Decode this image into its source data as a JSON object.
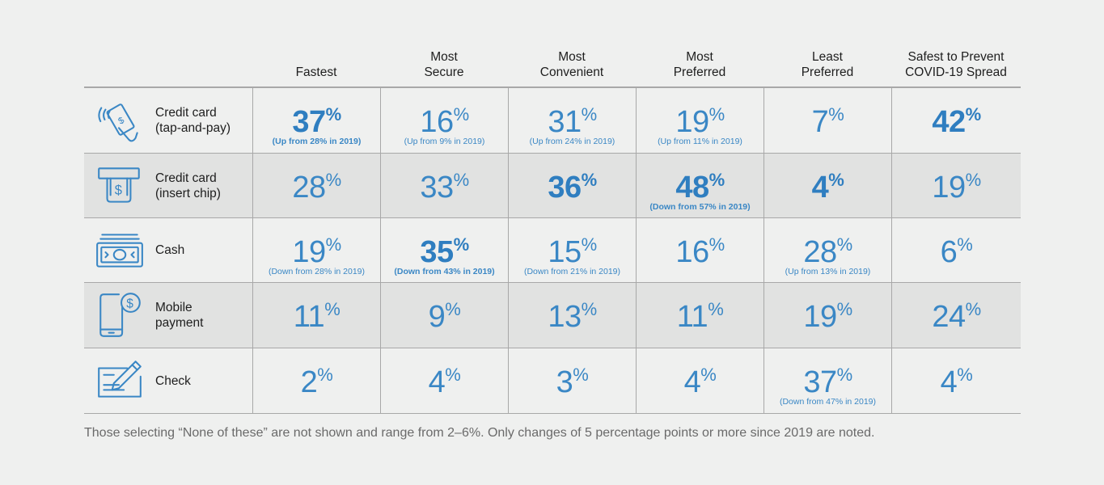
{
  "chart_data": {
    "type": "table",
    "columns": [
      "Fastest",
      "Most\nSecure",
      "Most\nConvenient",
      "Most\nPreferred",
      "Least\nPreferred",
      "Safest to Prevent\nCOVID-19 Spread"
    ],
    "rows": [
      {
        "label": "Credit card\n(tap-and-pay)",
        "icon": "contactless-card-icon",
        "shaded": false,
        "cells": [
          {
            "value": 37,
            "bold": true,
            "note": "(Up from 28% in 2019)"
          },
          {
            "value": 16,
            "bold": false,
            "note": "(Up from 9% in 2019)"
          },
          {
            "value": 31,
            "bold": false,
            "note": "(Up from 24% in 2019)"
          },
          {
            "value": 19,
            "bold": false,
            "note": "(Up from 11% in 2019)"
          },
          {
            "value": 7,
            "bold": false,
            "note": ""
          },
          {
            "value": 42,
            "bold": true,
            "note": ""
          }
        ]
      },
      {
        "label": "Credit card\n(insert chip)",
        "icon": "card-terminal-icon",
        "shaded": true,
        "cells": [
          {
            "value": 28,
            "bold": false,
            "note": ""
          },
          {
            "value": 33,
            "bold": false,
            "note": ""
          },
          {
            "value": 36,
            "bold": true,
            "note": ""
          },
          {
            "value": 48,
            "bold": true,
            "note": "(Down from 57% in 2019)"
          },
          {
            "value": 4,
            "bold": true,
            "note": ""
          },
          {
            "value": 19,
            "bold": false,
            "note": ""
          }
        ]
      },
      {
        "label": "Cash",
        "icon": "cash-icon",
        "shaded": false,
        "cells": [
          {
            "value": 19,
            "bold": false,
            "note": "(Down from 28% in 2019)"
          },
          {
            "value": 35,
            "bold": true,
            "note": "(Down from 43% in 2019)"
          },
          {
            "value": 15,
            "bold": false,
            "note": "(Down from 21% in 2019)"
          },
          {
            "value": 16,
            "bold": false,
            "note": ""
          },
          {
            "value": 28,
            "bold": false,
            "note": "(Up from 13% in 2019)"
          },
          {
            "value": 6,
            "bold": false,
            "note": ""
          }
        ]
      },
      {
        "label": "Mobile\npayment",
        "icon": "mobile-payment-icon",
        "shaded": true,
        "cells": [
          {
            "value": 11,
            "bold": false,
            "note": ""
          },
          {
            "value": 9,
            "bold": false,
            "note": ""
          },
          {
            "value": 13,
            "bold": false,
            "note": ""
          },
          {
            "value": 11,
            "bold": false,
            "note": ""
          },
          {
            "value": 19,
            "bold": false,
            "note": ""
          },
          {
            "value": 24,
            "bold": false,
            "note": ""
          }
        ]
      },
      {
        "label": "Check",
        "icon": "check-icon",
        "shaded": false,
        "cells": [
          {
            "value": 2,
            "bold": false,
            "note": ""
          },
          {
            "value": 4,
            "bold": false,
            "note": ""
          },
          {
            "value": 3,
            "bold": false,
            "note": ""
          },
          {
            "value": 4,
            "bold": false,
            "note": ""
          },
          {
            "value": 37,
            "bold": false,
            "note": "(Down from 47% in 2019)"
          },
          {
            "value": 4,
            "bold": false,
            "note": ""
          }
        ]
      }
    ],
    "unit": "%"
  },
  "footnote": "Those selecting “None of these” are not shown and range from 2–6%. Only changes of 5 percentage points or more since 2019 are noted.",
  "colors": {
    "value_blue": "#3a87c5",
    "icon_blue": "#3a87c5",
    "row_shade": "#e1e2e1",
    "background": "#eff0ef",
    "grid_line": "#a8a8a8"
  }
}
